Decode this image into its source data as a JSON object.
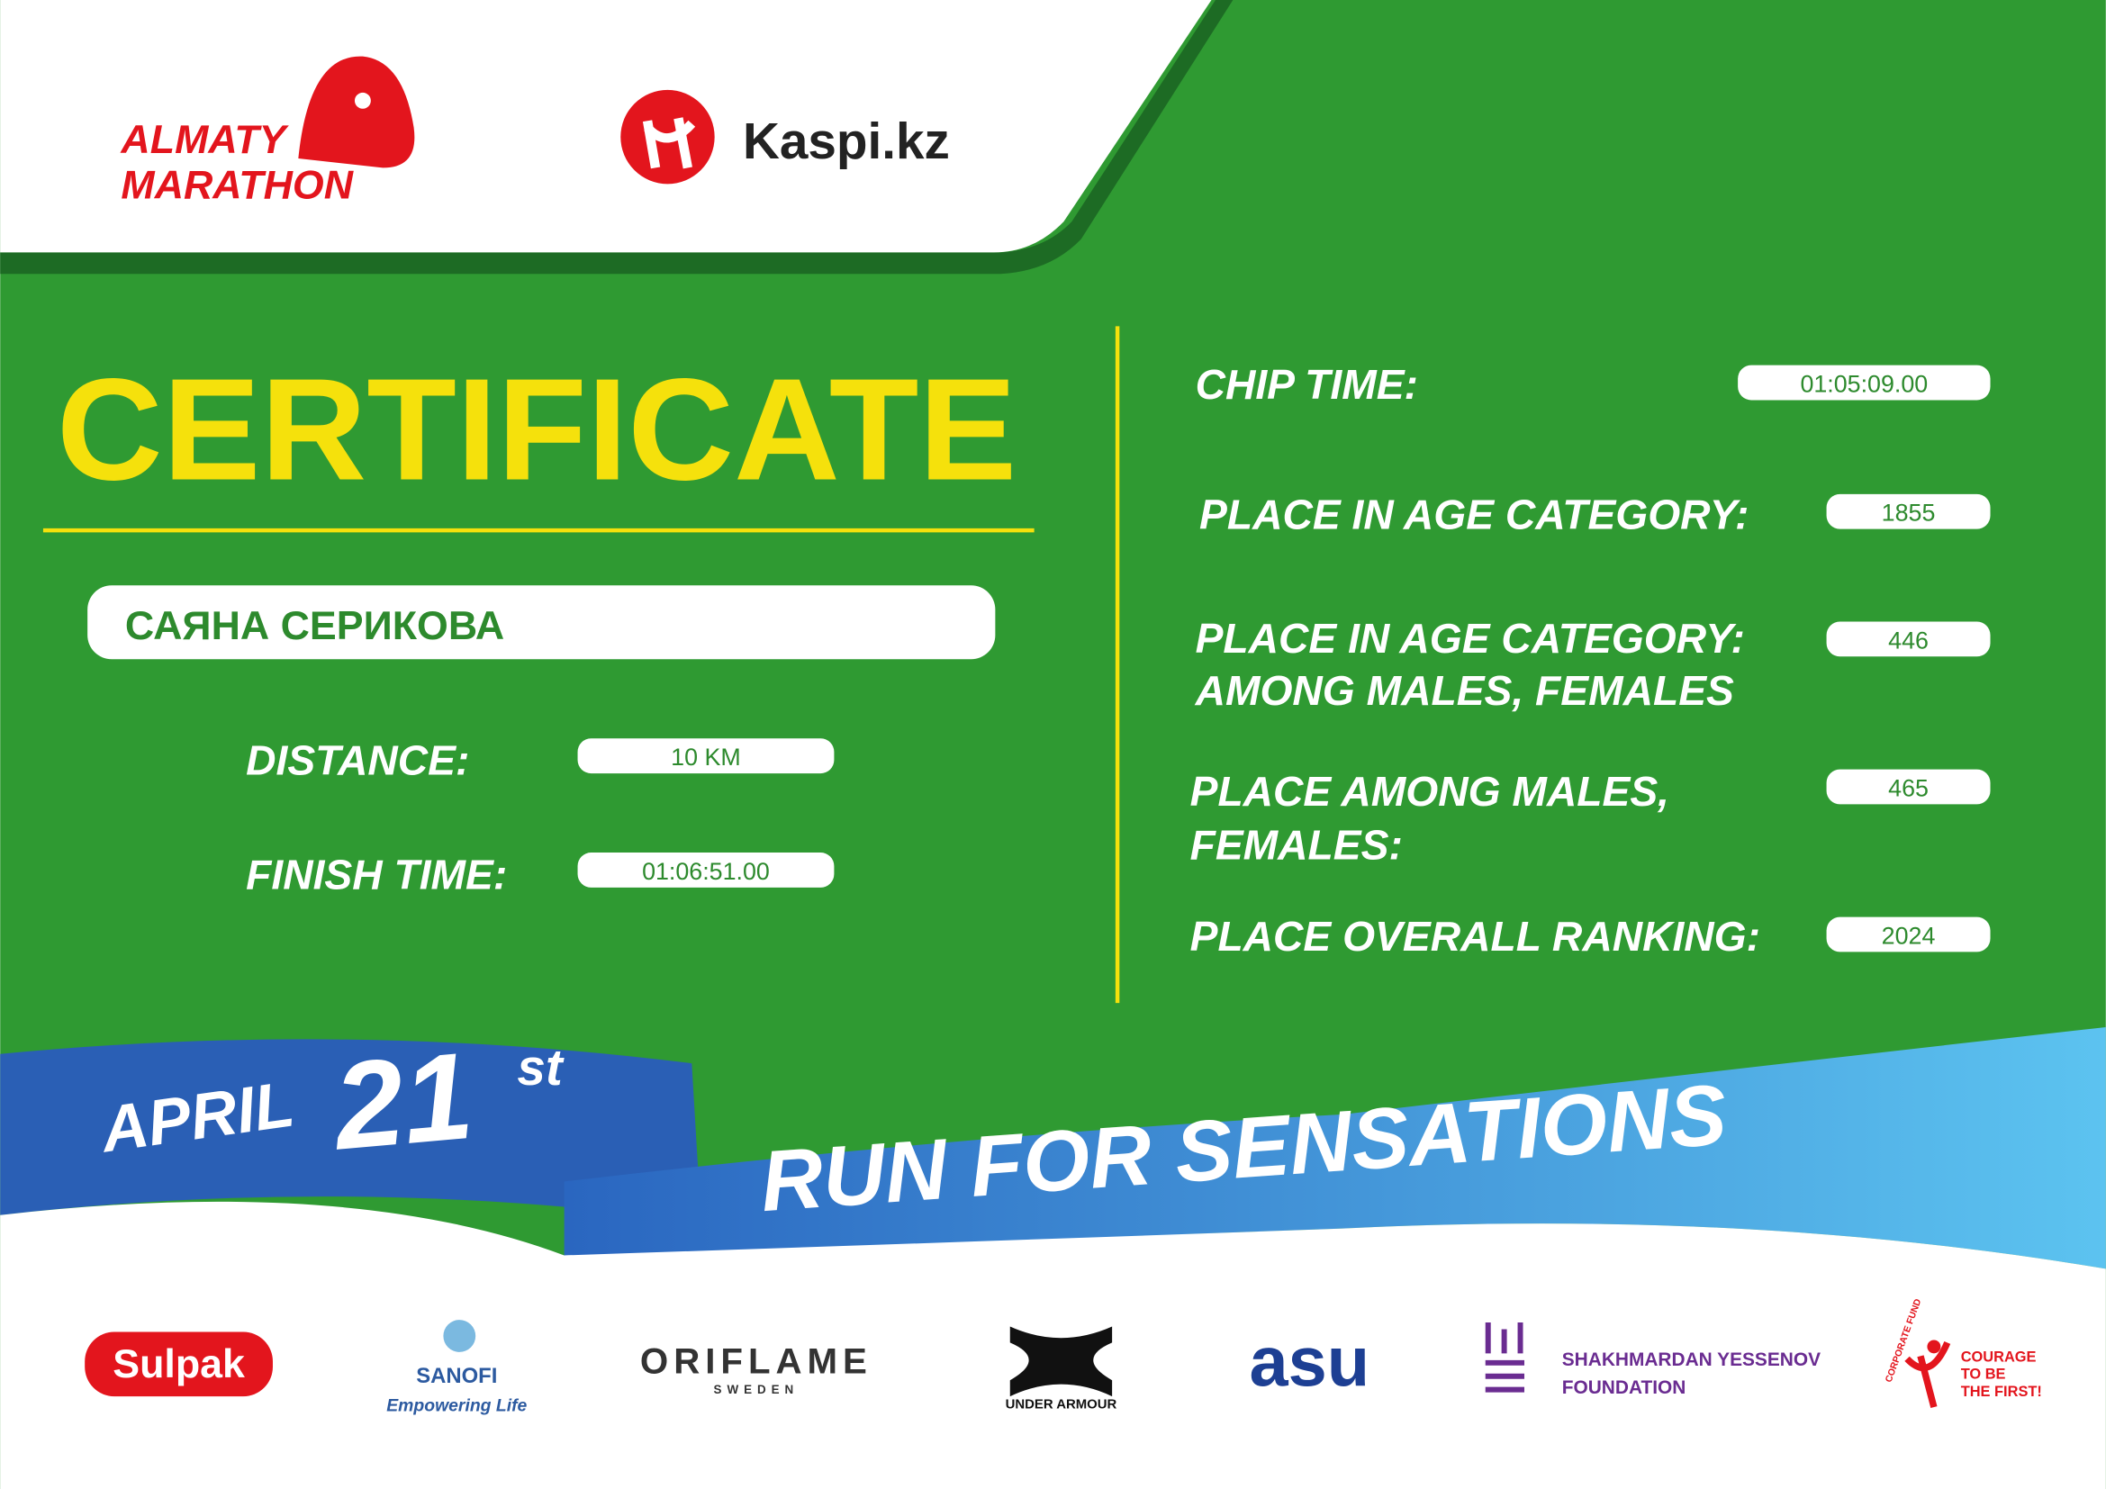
{
  "header": {
    "logo_lines": [
      "ALMATY",
      "MARATHON"
    ],
    "partner": "Kaspi.kz"
  },
  "title": "CERTIFICATE",
  "name": "САЯНА СЕРИКОВА",
  "left_fields": [
    {
      "label": [
        "DISTANCE:"
      ],
      "value": "10 KM"
    },
    {
      "label": [
        "FINISH TIME:"
      ],
      "value": "01:06:51.00"
    }
  ],
  "right_fields": [
    {
      "label": [
        "CHIP TIME:"
      ],
      "value": "01:05:09.00"
    },
    {
      "label": [
        "PLACE IN AGE CATEGORY:"
      ],
      "value": 1855
    },
    {
      "label": [
        "PLACE IN AGE CATEGORY:",
        "AMONG MALES, FEMALES"
      ],
      "value": 446
    },
    {
      "label": [
        "PLACE AMONG MALES,",
        "FEMALES:"
      ],
      "value": 465
    },
    {
      "label": [
        "PLACE OVERALL RANKING:"
      ],
      "value": 2024
    }
  ],
  "banner": {
    "month": "APRIL",
    "day": "21",
    "suffix": "st",
    "slogan": "RUN FOR SENSATIONS"
  },
  "sponsors": {
    "sulpak": "Sulpak",
    "sanofi": [
      "SANOFI",
      "Empowering Life"
    ],
    "oriflame": [
      "ORIFLAME",
      "SWEDEN"
    ],
    "under_armour": "UNDER ARMOUR",
    "asu": "asu",
    "yessenov": [
      "SHAKHMARDAN YESSENOV",
      "FOUNDATION"
    ],
    "courage": [
      "COURAGE",
      "TO BE",
      "THE FIRST!"
    ],
    "courage_arc": "CORPORATE FUND"
  }
}
